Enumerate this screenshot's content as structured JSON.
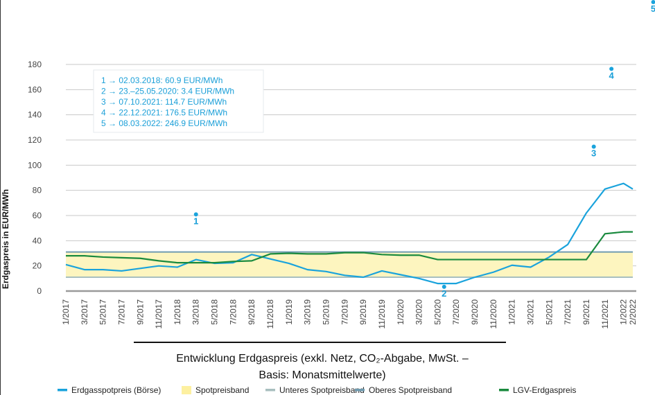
{
  "chart_data": {
    "type": "line",
    "title_line1": "Entwicklung Erdgaspreis (exkl. Netz, CO₂-Abgabe, MwSt. –",
    "title_line2": "Basis: Monatsmittelwerte)",
    "xlabel": "",
    "ylabel": "Erdgaspreis in EUR/MWh",
    "ylim": [
      0,
      180
    ],
    "yticks": [
      "0",
      "20",
      "40",
      "60",
      "80",
      "100",
      "120",
      "140",
      "160",
      "180"
    ],
    "x_month_index_range": [
      0,
      61
    ],
    "xticks": [
      "1/2017",
      "3/2017",
      "5/2017",
      "7/2017",
      "9/2017",
      "11/2017",
      "1/2018",
      "3/2018",
      "5/2018",
      "7/2018",
      "9/2018",
      "11/2018",
      "1/2019",
      "3/2019",
      "5/2019",
      "7/2019",
      "9/2019",
      "11/2019",
      "1/2020",
      "3/2020",
      "5/2020",
      "7/2020",
      "9/2020",
      "11/2020",
      "1/2021",
      "3/2021",
      "5/2021",
      "7/2021",
      "9/2021",
      "11/2021",
      "1/2022",
      "2/2022"
    ],
    "xtick_month_index": [
      0,
      2,
      4,
      6,
      8,
      10,
      12,
      14,
      16,
      18,
      20,
      22,
      24,
      26,
      28,
      30,
      32,
      34,
      36,
      38,
      40,
      42,
      44,
      46,
      48,
      50,
      52,
      54,
      56,
      58,
      60,
      61
    ],
    "series": [
      {
        "name": "Erdgasspotpreis (Börse)",
        "color": "#1aa3dc",
        "values": [
          21,
          17,
          17,
          16,
          18,
          20,
          19,
          25,
          22,
          22.5,
          29,
          25.5,
          22,
          17,
          15.5,
          12.5,
          11,
          16,
          13,
          10,
          6,
          6,
          11,
          15,
          20.5,
          19,
          27,
          37,
          62,
          81,
          85.5,
          81
        ]
      },
      {
        "name": "LGV-Erdgaspreis",
        "color": "#1a8a3e",
        "values": [
          28,
          28,
          27,
          26.5,
          26,
          24,
          22.5,
          22.5,
          22.5,
          23.5,
          24,
          29.5,
          30,
          29.5,
          29.5,
          30.5,
          30.5,
          29,
          28.5,
          28.5,
          25,
          25,
          25,
          25,
          25,
          25,
          25,
          25,
          25,
          45.5,
          47,
          47
        ]
      }
    ],
    "band": {
      "name": "Spotpreisband",
      "lower": 11,
      "upper": 31,
      "color": "#fdf5bf",
      "lower_name": "Unteres Spotpreisband",
      "lower_color": "#a8bfbf",
      "upper_name": "Oberes Spotpreisband",
      "upper_color": "#6f9bb0"
    },
    "annotations": [
      {
        "label": "1",
        "month_index": 14,
        "value": 60.9,
        "text": "1 → 02.03.2018: 60.9 EUR/MWh"
      },
      {
        "label": "2",
        "month_index": 40.7,
        "value": 3.4,
        "text": "2 → 23.–25.05.2020: 3.4 EUR/MWh"
      },
      {
        "label": "3",
        "month_index": 56.8,
        "value": 114.7,
        "text": "3 → 07.10.2021: 114.7 EUR/MWh"
      },
      {
        "label": "4",
        "month_index": 58.7,
        "value": 176.5,
        "text": "4 → 22.12.2021: 176.5 EUR/MWh"
      },
      {
        "label": "5",
        "month_index": 63.2,
        "value": 246.9,
        "text": "5 → 08.03.2022: 246.9 EUR/MWh"
      }
    ],
    "legend": [
      "Erdgasspotpreis (Börse)",
      "Spotpreisband",
      "Unteres Spotpreisband",
      "Oberes Spotpreisband",
      "LGV-Erdgaspreis"
    ],
    "legend_colors": [
      "#1aa3dc",
      "#fdf0a0",
      "#a8bfbf",
      "#6f9bb0",
      "#1a8a3e"
    ],
    "legend_position": "bottom",
    "grid": true
  }
}
